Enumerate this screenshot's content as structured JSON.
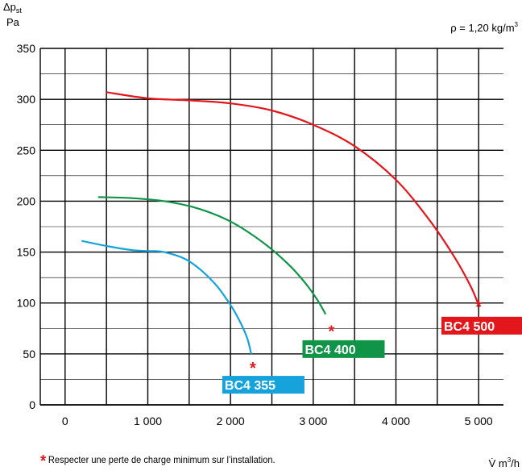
{
  "chart_data": {
    "type": "line",
    "ylabel_top": "Δp",
    "ylabel_sub": "st",
    "ylabel_unit": "Pa",
    "density_label": "ρ = 1,20 kg/m",
    "density_sup": "3",
    "xlabel": "V̇ m",
    "xlabel_sup": "3",
    "xlabel_tail": "/h",
    "xlim": [
      -300,
      5300
    ],
    "ylim": [
      0,
      350
    ],
    "xticks": [
      0,
      1000,
      2000,
      3000,
      4000,
      5000
    ],
    "xtick_labels": [
      "0",
      "1 000",
      "2 000",
      "3 000",
      "4 000",
      "5 000"
    ],
    "yticks": [
      0,
      50,
      100,
      150,
      200,
      250,
      300,
      350
    ],
    "ytick_labels": [
      "0",
      "50",
      "100",
      "150",
      "200",
      "250",
      "300",
      "350"
    ],
    "grid_x_minor": 500,
    "grid_y_minor": 25,
    "grid": true,
    "series": [
      {
        "name": "BC4 355",
        "color": "#16a3dc",
        "x": [
          200,
          500,
          800,
          1000,
          1200,
          1500,
          1800,
          2000,
          2100,
          2200,
          2250
        ],
        "y": [
          161,
          156,
          152,
          151,
          150,
          141,
          120,
          98,
          84,
          66,
          50
        ],
        "marker": {
          "x": 2270,
          "y": 38
        },
        "label_at": {
          "x": 1900,
          "y": 15
        }
      },
      {
        "name": "BC4 400",
        "color": "#109548",
        "x": [
          400,
          800,
          1200,
          1600,
          2000,
          2400,
          2700,
          2900,
          3050,
          3150
        ],
        "y": [
          204,
          203,
          200,
          193,
          180,
          159,
          138,
          120,
          103,
          89
        ],
        "marker": {
          "x": 3220,
          "y": 74
        },
        "label_at": {
          "x": 2870,
          "y": 50
        }
      },
      {
        "name": "BC4 500",
        "color": "#e3161b",
        "x": [
          500,
          1000,
          1500,
          2000,
          2500,
          3000,
          3500,
          4000,
          4400,
          4700,
          4900,
          5000
        ],
        "y": [
          307,
          301,
          299,
          296,
          289,
          275,
          254,
          221,
          182,
          146,
          117,
          98
        ],
        "marker": {
          "x": 5000,
          "y": 98
        },
        "label_at": {
          "x": 4550,
          "y": 73
        }
      }
    ]
  },
  "footnote": {
    "star": "*",
    "text": "Respecter une perte de charge minimum sur l’installation."
  }
}
